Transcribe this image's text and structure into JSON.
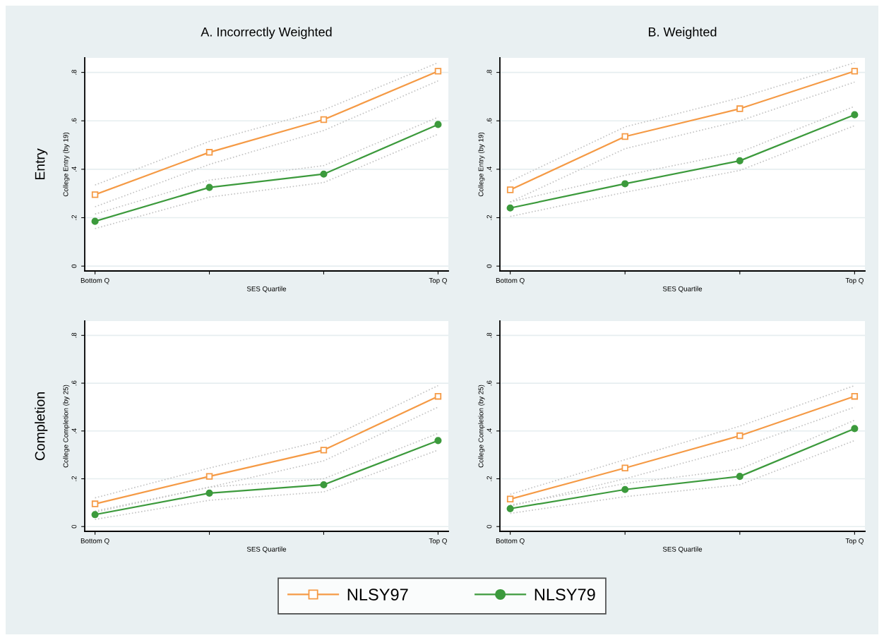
{
  "chart_data": [
    {
      "type": "line",
      "title": "A. Incorrectly Weighted",
      "xlabel": "SES Quartile",
      "ylabel": "College Entry (by 19)",
      "annotations": [
        "Entry"
      ],
      "categories": [
        "Bottom Q",
        null,
        null,
        "Top Q"
      ],
      "ylim": [
        -0.02,
        0.86
      ],
      "yticks": [
        0,
        {
          "value": 0.2,
          "label": ".2"
        },
        {
          "value": 0.4,
          "label": ".4"
        },
        {
          "value": 0.6,
          "label": ".6"
        },
        {
          "value": 0.8,
          "label": ".8"
        }
      ],
      "grid": "y",
      "series": [
        {
          "color": "#c4c4c4",
          "line_style": "dotted",
          "marker": "none",
          "values": [
            0.335,
            0.515,
            0.645,
            0.84
          ]
        },
        {
          "color": "#c4c4c4",
          "line_style": "dotted",
          "marker": "none",
          "values": [
            0.245,
            0.42,
            0.56,
            0.765
          ]
        },
        {
          "color": "#c4c4c4",
          "line_style": "dotted",
          "marker": "none",
          "values": [
            0.215,
            0.355,
            0.415,
            0.615
          ]
        },
        {
          "color": "#c4c4c4",
          "line_style": "dotted",
          "marker": "none",
          "values": [
            0.155,
            0.285,
            0.345,
            0.545
          ]
        },
        {
          "color": "#f59a45",
          "marker": "square",
          "values": [
            0.295,
            0.47,
            0.605,
            0.805
          ]
        },
        {
          "color": "#3c9a3c",
          "marker": "circle",
          "values": [
            0.185,
            0.325,
            0.38,
            0.585
          ]
        }
      ]
    },
    {
      "type": "line",
      "title": "B. Weighted",
      "xlabel": "SES Quartile",
      "ylabel": "College Entry (by 19)",
      "categories": [
        "Bottom Q",
        null,
        null,
        "Top Q"
      ],
      "ylim": [
        -0.02,
        0.86
      ],
      "yticks": [
        0,
        {
          "value": 0.2,
          "label": ".2"
        },
        {
          "value": 0.4,
          "label": ".4"
        },
        {
          "value": 0.6,
          "label": ".6"
        },
        {
          "value": 0.8,
          "label": ".8"
        }
      ],
      "grid": "y",
      "series": [
        {
          "color": "#c4c4c4",
          "line_style": "dotted",
          "marker": "none",
          "values": [
            0.35,
            0.575,
            0.695,
            0.84
          ]
        },
        {
          "color": "#c4c4c4",
          "line_style": "dotted",
          "marker": "none",
          "values": [
            0.265,
            0.485,
            0.6,
            0.76
          ]
        },
        {
          "color": "#c4c4c4",
          "line_style": "dotted",
          "marker": "none",
          "values": [
            0.265,
            0.375,
            0.47,
            0.66
          ]
        },
        {
          "color": "#c4c4c4",
          "line_style": "dotted",
          "marker": "none",
          "values": [
            0.205,
            0.305,
            0.395,
            0.58
          ]
        },
        {
          "color": "#f59a45",
          "marker": "square",
          "values": [
            0.315,
            0.535,
            0.65,
            0.805
          ]
        },
        {
          "color": "#3c9a3c",
          "marker": "circle",
          "values": [
            0.24,
            0.34,
            0.435,
            0.625
          ]
        }
      ]
    },
    {
      "type": "line",
      "xlabel": "SES Quartile",
      "ylabel": "College Completion (by 25)",
      "annotations": [
        "Completion"
      ],
      "categories": [
        "Bottom Q",
        null,
        null,
        "Top Q"
      ],
      "ylim": [
        -0.02,
        0.86
      ],
      "yticks": [
        0,
        {
          "value": 0.2,
          "label": ".2"
        },
        {
          "value": 0.4,
          "label": ".4"
        },
        {
          "value": 0.6,
          "label": ".6"
        },
        {
          "value": 0.8,
          "label": ".8"
        }
      ],
      "grid": "y",
      "series": [
        {
          "color": "#c4c4c4",
          "line_style": "dotted",
          "marker": "none",
          "values": [
            0.12,
            0.245,
            0.36,
            0.59
          ]
        },
        {
          "color": "#c4c4c4",
          "line_style": "dotted",
          "marker": "none",
          "values": [
            0.06,
            0.165,
            0.275,
            0.5
          ]
        },
        {
          "color": "#c4c4c4",
          "line_style": "dotted",
          "marker": "none",
          "values": [
            0.065,
            0.165,
            0.2,
            0.39
          ]
        },
        {
          "color": "#c4c4c4",
          "line_style": "dotted",
          "marker": "none",
          "values": [
            0.03,
            0.11,
            0.145,
            0.32
          ]
        },
        {
          "color": "#f59a45",
          "marker": "square",
          "values": [
            0.095,
            0.21,
            0.32,
            0.545
          ]
        },
        {
          "color": "#3c9a3c",
          "marker": "circle",
          "values": [
            0.05,
            0.14,
            0.175,
            0.36
          ]
        }
      ]
    },
    {
      "type": "line",
      "xlabel": "SES Quartile",
      "ylabel": "College Completion (by 25)",
      "categories": [
        "Bottom Q",
        null,
        null,
        "Top Q"
      ],
      "ylim": [
        -0.02,
        0.86
      ],
      "yticks": [
        0,
        {
          "value": 0.2,
          "label": ".2"
        },
        {
          "value": 0.4,
          "label": ".4"
        },
        {
          "value": 0.6,
          "label": ".6"
        },
        {
          "value": 0.8,
          "label": ".8"
        }
      ],
      "grid": "y",
      "legend": "bottom",
      "series": [
        {
          "color": "#c4c4c4",
          "line_style": "dotted",
          "marker": "none",
          "values": [
            0.135,
            0.28,
            0.42,
            0.59
          ]
        },
        {
          "color": "#c4c4c4",
          "line_style": "dotted",
          "marker": "none",
          "values": [
            0.085,
            0.2,
            0.33,
            0.5
          ]
        },
        {
          "color": "#c4c4c4",
          "line_style": "dotted",
          "marker": "none",
          "values": [
            0.09,
            0.18,
            0.24,
            0.445
          ]
        },
        {
          "color": "#c4c4c4",
          "line_style": "dotted",
          "marker": "none",
          "values": [
            0.055,
            0.125,
            0.175,
            0.36
          ]
        },
        {
          "name": "NLSY97",
          "color": "#f59a45",
          "marker": "square",
          "values": [
            0.115,
            0.245,
            0.38,
            0.545
          ]
        },
        {
          "name": "NLSY79",
          "color": "#3c9a3c",
          "marker": "circle",
          "values": [
            0.075,
            0.155,
            0.21,
            0.41
          ]
        }
      ]
    }
  ]
}
